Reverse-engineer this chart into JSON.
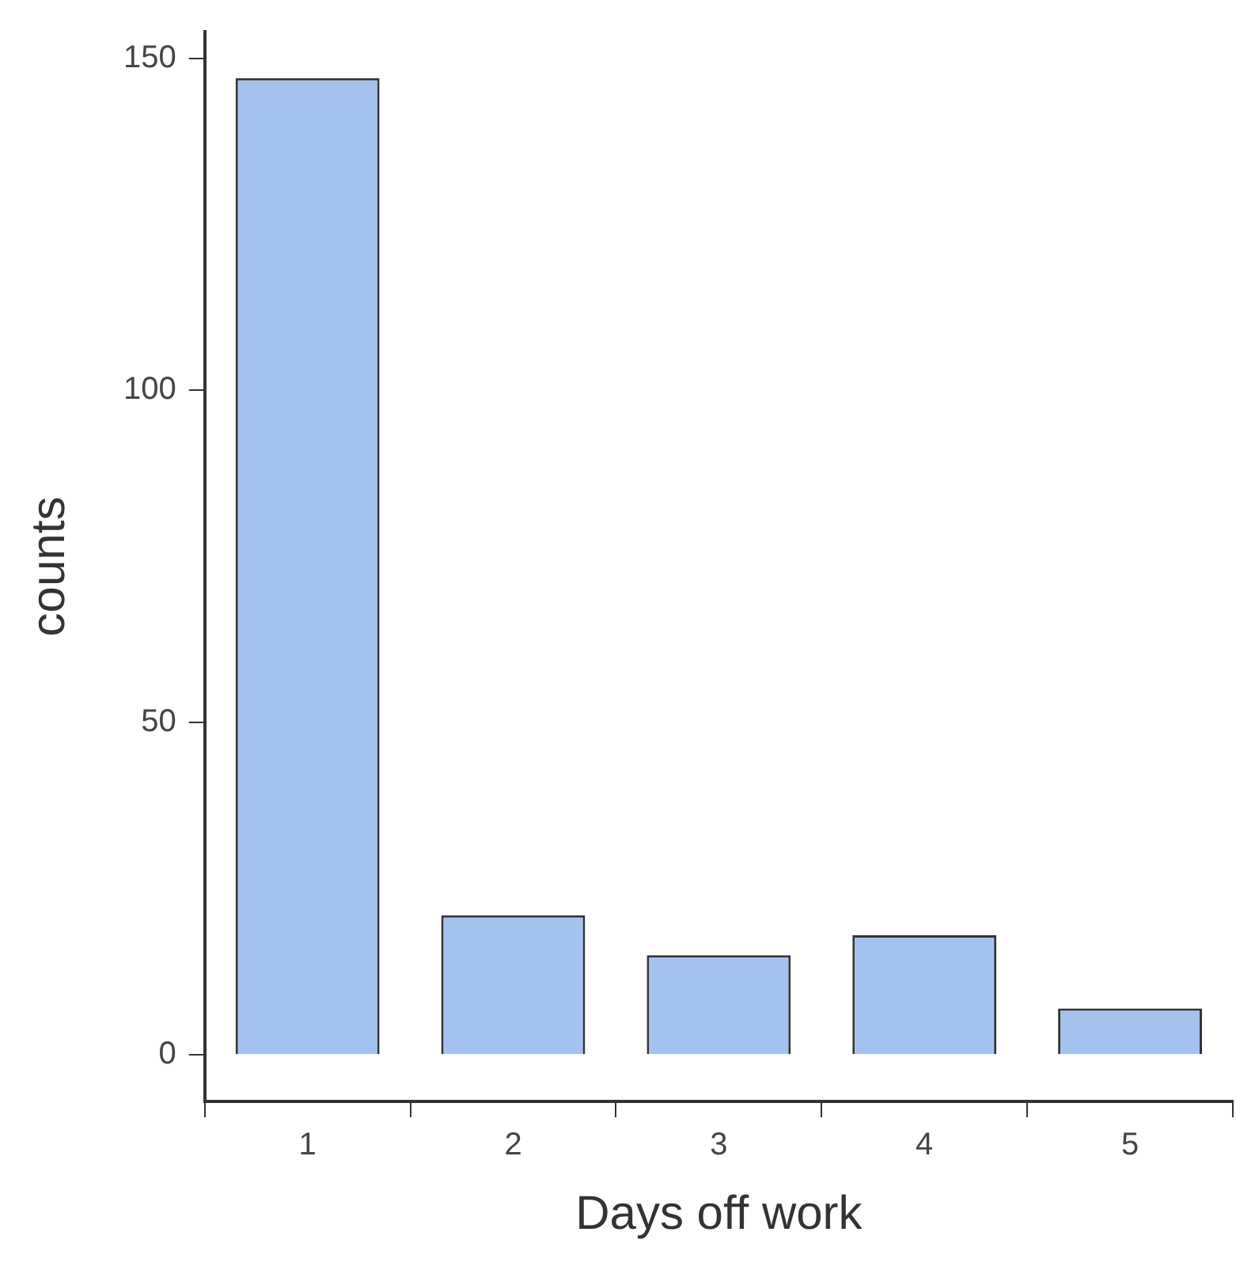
{
  "chart_data": {
    "type": "bar",
    "xlabel": "Days off work",
    "ylabel": "counts",
    "categories": [
      "1",
      "2",
      "3",
      "4",
      "5"
    ],
    "values": [
      147,
      21,
      15,
      18,
      7
    ],
    "color": "#a4c2f0",
    "ylim": [
      -7,
      154
    ],
    "yticks": [
      0,
      50,
      100,
      150
    ],
    "grid": false,
    "legend": false
  }
}
